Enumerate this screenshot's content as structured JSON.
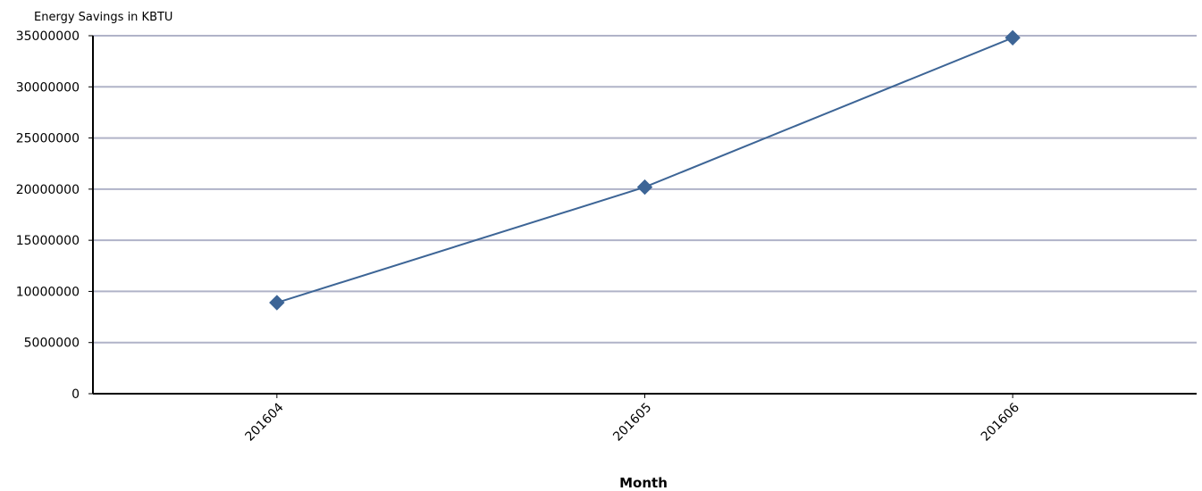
{
  "chart_data": {
    "type": "line",
    "title": "",
    "ylabel": "Energy Savings in KBTU",
    "xlabel": "Month",
    "categories": [
      "201604",
      "201605",
      "201606"
    ],
    "series": [
      {
        "values": [
          8900000,
          20200000,
          34800000
        ],
        "color": "#3d6596",
        "marker": "diamond"
      }
    ],
    "ylim": [
      0,
      35000000
    ],
    "yticks": [
      0,
      5000000,
      10000000,
      15000000,
      20000000,
      25000000,
      30000000,
      35000000
    ],
    "grid": true,
    "grid_color": "#b0b3c8",
    "axis_color": "#000000",
    "legend": "none"
  }
}
